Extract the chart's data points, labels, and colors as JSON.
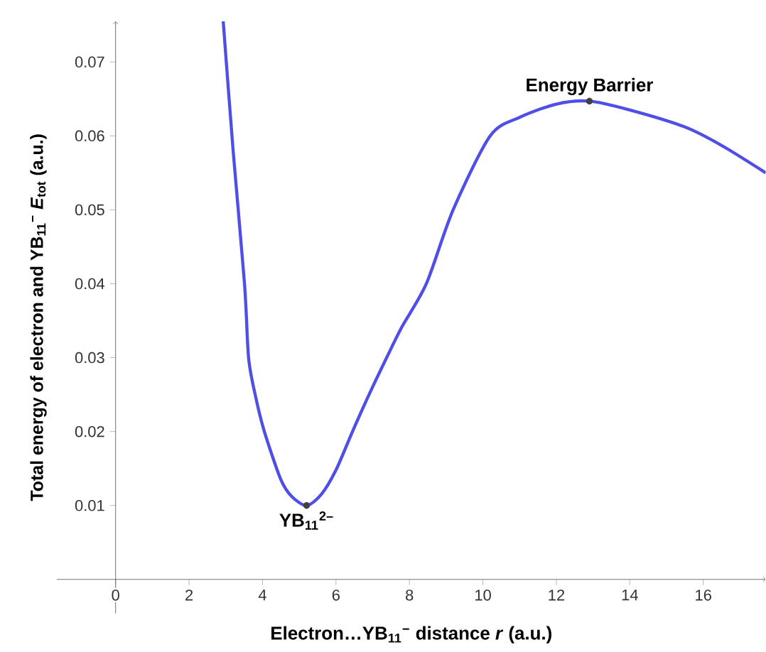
{
  "chart_data": {
    "type": "line",
    "xlabel": "Electron…YB$_{11}$$^{−}$ distance *r* (a.u.)",
    "ylabel": "Total energy of electron and YB$_{11}$$^{−}$ *E*$_{tot}$ (a.u.)",
    "x": [
      2.93,
      3.2,
      3.51,
      3.62,
      3.8,
      4.05,
      4.5,
      4.8,
      5.2,
      5.6,
      6.0,
      6.45,
      6.9,
      7.38,
      7.8,
      8.46,
      9.19,
      10.2,
      11.0,
      12.0,
      12.9,
      14.0,
      15.5,
      16.5,
      17.7
    ],
    "series": [
      {
        "color": "#4f4fe8",
        "values": [
          0.0755,
          0.058,
          0.04,
          0.03,
          0.025,
          0.02,
          0.0135,
          0.0112,
          0.01,
          0.0115,
          0.0148,
          0.02,
          0.025,
          0.03,
          0.0342,
          0.04,
          0.05,
          0.06,
          0.0625,
          0.0643,
          0.0647,
          0.0635,
          0.0612,
          0.0587,
          0.055
        ]
      }
    ],
    "annotations": [
      {
        "text": "Energy Barrier",
        "x": 12.9,
        "y": 0.0647
      },
      {
        "text": "YB$_{11}$$^{2–}$",
        "x": 5.2,
        "y": 0.01
      }
    ],
    "xlim": [
      -1.6,
      17.7
    ],
    "ylim": [
      -0.0046,
      0.0755
    ],
    "xticks": [
      0,
      2,
      4,
      6,
      8,
      10,
      12,
      14,
      16
    ],
    "yticks": [
      0.01,
      0.02,
      0.03,
      0.04,
      0.05,
      0.06,
      0.07
    ],
    "grid": false
  }
}
